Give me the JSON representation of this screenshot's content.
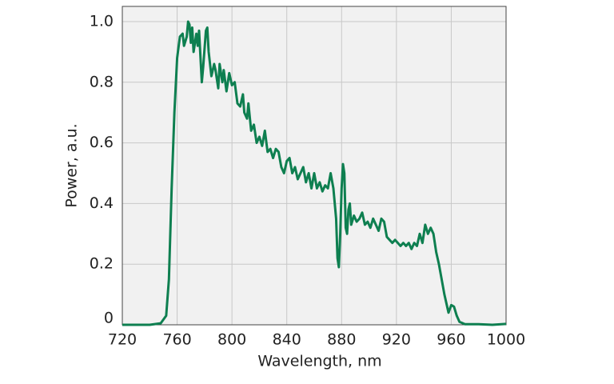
{
  "chart_data": {
    "type": "line",
    "xlabel": "Wavelength, nm",
    "ylabel": "Power, a.u.",
    "xlim": [
      720,
      1000
    ],
    "ylim": [
      0,
      1.05
    ],
    "xticks": [
      720,
      760,
      800,
      840,
      880,
      920,
      960,
      1000
    ],
    "yticks": [
      0,
      0.2,
      0.4,
      0.6,
      0.8,
      {
        "value": 1,
        "label": "1.0"
      }
    ],
    "grid": true,
    "series": [
      {
        "color": "#0e7f50",
        "x": [
          720,
          740,
          748,
          752,
          754,
          756,
          758,
          760,
          762,
          764,
          765,
          767,
          768,
          769,
          770,
          771,
          772,
          774,
          775,
          776,
          778,
          779,
          781,
          782,
          783,
          785,
          787,
          788,
          790,
          791,
          793,
          794,
          796,
          798,
          800,
          802,
          804,
          806,
          808,
          809,
          811,
          812,
          814,
          816,
          818,
          820,
          822,
          824,
          826,
          828,
          830,
          832,
          834,
          836,
          838,
          840,
          842,
          844,
          846,
          848,
          850,
          852,
          854,
          856,
          858,
          860,
          862,
          864,
          866,
          868,
          870,
          872,
          874,
          876,
          877,
          878,
          879,
          880,
          881,
          882,
          883,
          884,
          885,
          886,
          887,
          889,
          891,
          893,
          895,
          897,
          899,
          901,
          903,
          905,
          907,
          909,
          911,
          913,
          915,
          917,
          919,
          921,
          923,
          925,
          927,
          929,
          931,
          933,
          935,
          937,
          939,
          941,
          943,
          945,
          947,
          949,
          951,
          953,
          955,
          957,
          958,
          960,
          962,
          964,
          966,
          970,
          980,
          990,
          1000
        ],
        "values": [
          0,
          0,
          0.005,
          0.03,
          0.15,
          0.45,
          0.7,
          0.88,
          0.95,
          0.96,
          0.92,
          0.95,
          1.0,
          0.99,
          0.93,
          0.98,
          0.9,
          0.96,
          0.92,
          0.97,
          0.8,
          0.85,
          0.97,
          0.98,
          0.9,
          0.82,
          0.86,
          0.84,
          0.78,
          0.86,
          0.8,
          0.84,
          0.77,
          0.83,
          0.79,
          0.8,
          0.73,
          0.72,
          0.76,
          0.7,
          0.68,
          0.73,
          0.64,
          0.66,
          0.6,
          0.62,
          0.59,
          0.64,
          0.57,
          0.58,
          0.55,
          0.58,
          0.57,
          0.52,
          0.5,
          0.54,
          0.55,
          0.5,
          0.52,
          0.48,
          0.5,
          0.52,
          0.47,
          0.5,
          0.45,
          0.5,
          0.45,
          0.47,
          0.44,
          0.46,
          0.45,
          0.5,
          0.45,
          0.35,
          0.22,
          0.19,
          0.3,
          0.45,
          0.53,
          0.5,
          0.32,
          0.3,
          0.38,
          0.4,
          0.33,
          0.36,
          0.34,
          0.35,
          0.37,
          0.33,
          0.34,
          0.32,
          0.35,
          0.33,
          0.31,
          0.35,
          0.34,
          0.29,
          0.28,
          0.27,
          0.28,
          0.27,
          0.26,
          0.27,
          0.26,
          0.27,
          0.25,
          0.27,
          0.26,
          0.3,
          0.27,
          0.33,
          0.3,
          0.32,
          0.3,
          0.24,
          0.2,
          0.15,
          0.1,
          0.06,
          0.04,
          0.065,
          0.06,
          0.03,
          0.01,
          0.002,
          0.002,
          0,
          0.003
        ]
      }
    ]
  }
}
